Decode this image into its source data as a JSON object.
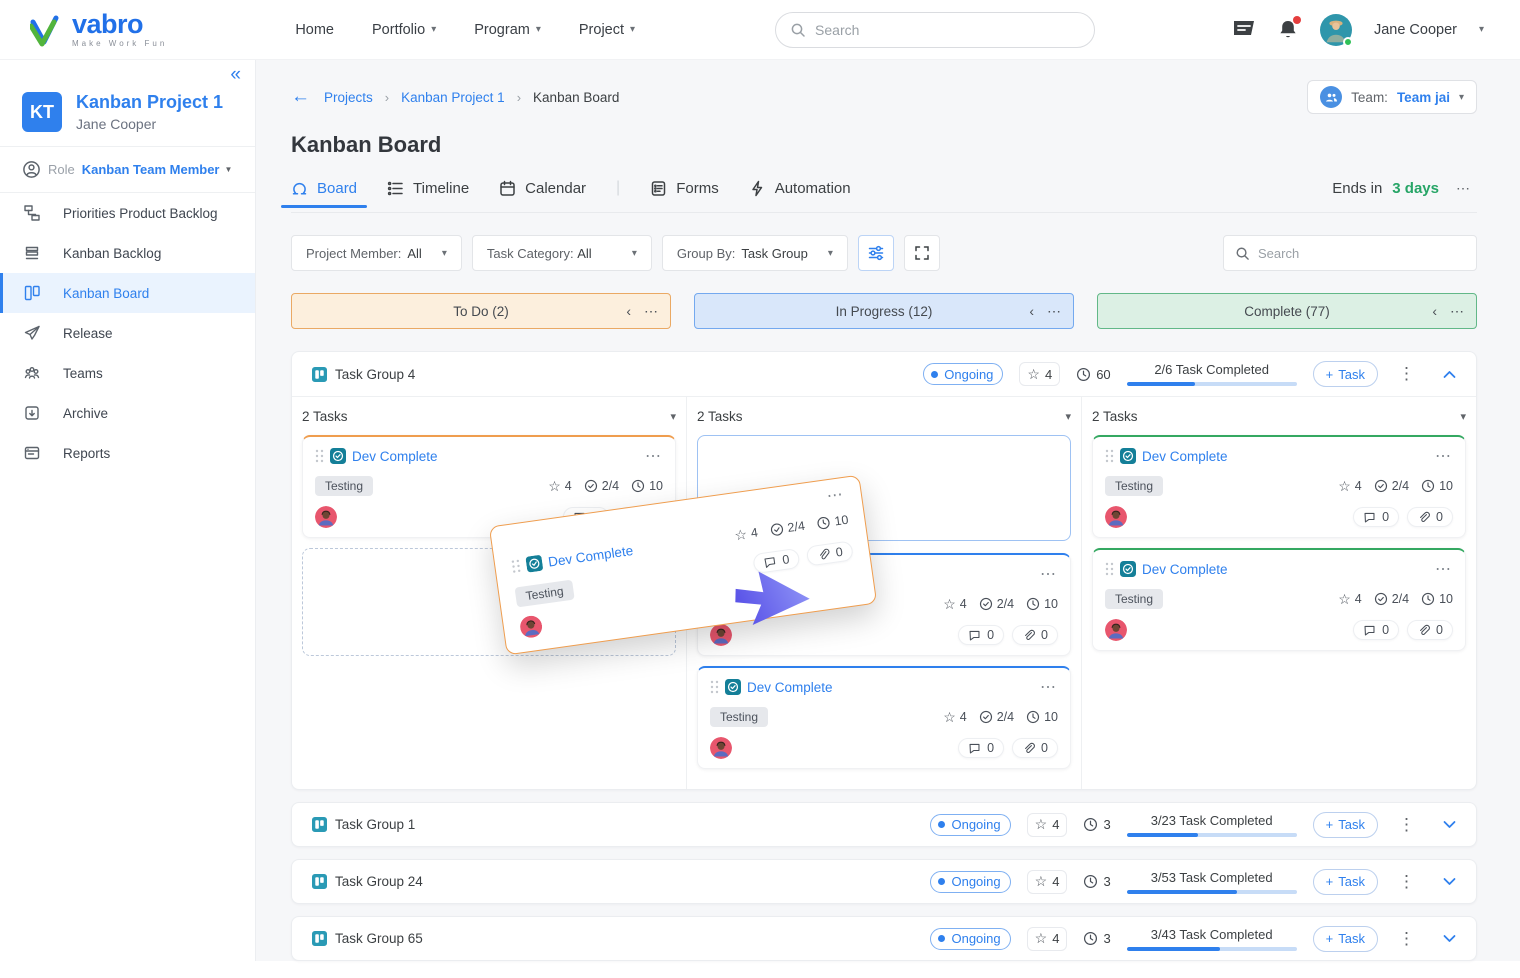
{
  "icons": {
    "collapse": "«",
    "caret": "▾",
    "caret_solid": "▼",
    "ellipsis_h": "⋯",
    "ellipsis_v": "⋮",
    "chevron_left": "‹",
    "back_arrow": "←",
    "sep": "›",
    "star": "☆",
    "plus": "+",
    "tab_divider": "|"
  },
  "topbar": {
    "brand_name": "vabro",
    "brand_tagline": "Make Work Fun",
    "nav": [
      "Home",
      "Portfolio",
      "Program",
      "Project"
    ],
    "search_placeholder": "Search",
    "user_name": "Jane Cooper"
  },
  "sidebar": {
    "project": {
      "initials": "KT",
      "name": "Kanban Project 1",
      "owner": "Jane Cooper"
    },
    "role_label": "Role",
    "role_value": "Kanban Team Member",
    "items": [
      "Priorities Product Backlog",
      "Kanban Backlog",
      "Kanban Board",
      "Release",
      "Teams",
      "Archive",
      "Reports"
    ]
  },
  "page": {
    "breadcrumb": [
      "Projects",
      "Kanban Project 1",
      "Kanban Board"
    ],
    "title": "Kanban Board",
    "team_label": "Team:",
    "team_value": "Team jai",
    "tabs": [
      "Board",
      "Timeline",
      "Calendar",
      "Forms",
      "Automation"
    ],
    "ends_prefix": "Ends in",
    "ends_value": "3 days",
    "filters": {
      "member_label": "Project Member:",
      "member_value": "All",
      "category_label": "Task Category:",
      "category_value": "All",
      "group_label": "Group By:",
      "group_value": "Task Group",
      "search_placeholder": "Search"
    }
  },
  "board": {
    "columns": [
      {
        "header": "To Do (2)",
        "count": "2 Tasks"
      },
      {
        "header": "In Progress (12)",
        "count": "2 Tasks"
      },
      {
        "header": "Complete (77)",
        "count": "2 Tasks"
      }
    ]
  },
  "card": {
    "title": "Dev Complete",
    "tag": "Testing",
    "stars": "4",
    "checklist": "2/4",
    "hours": "10",
    "comments": "0",
    "attachments": "0"
  },
  "groups": [
    {
      "name": "Task Group 4",
      "status": "Ongoing",
      "stars": "4",
      "hours": "60",
      "completed": "2/6 Task Completed",
      "progress_pct": 40,
      "add_label": "Task"
    },
    {
      "name": "Task Group 1",
      "status": "Ongoing",
      "stars": "4",
      "hours": "3",
      "completed": "3/23 Task Completed",
      "progress_pct": 42,
      "add_label": "Task"
    },
    {
      "name": "Task Group 24",
      "status": "Ongoing",
      "stars": "4",
      "hours": "3",
      "completed": "3/53 Task Completed",
      "progress_pct": 65,
      "add_label": "Task"
    },
    {
      "name": "Task Group 65",
      "status": "Ongoing",
      "stars": "4",
      "hours": "3",
      "completed": "3/43 Task Completed",
      "progress_pct": 55,
      "add_label": "Task"
    }
  ],
  "colors": {
    "accent_blue": "#2f80ed",
    "todo_orange": "#ef9d4e",
    "complete_green": "#34a861",
    "ends_green": "#27a567"
  }
}
